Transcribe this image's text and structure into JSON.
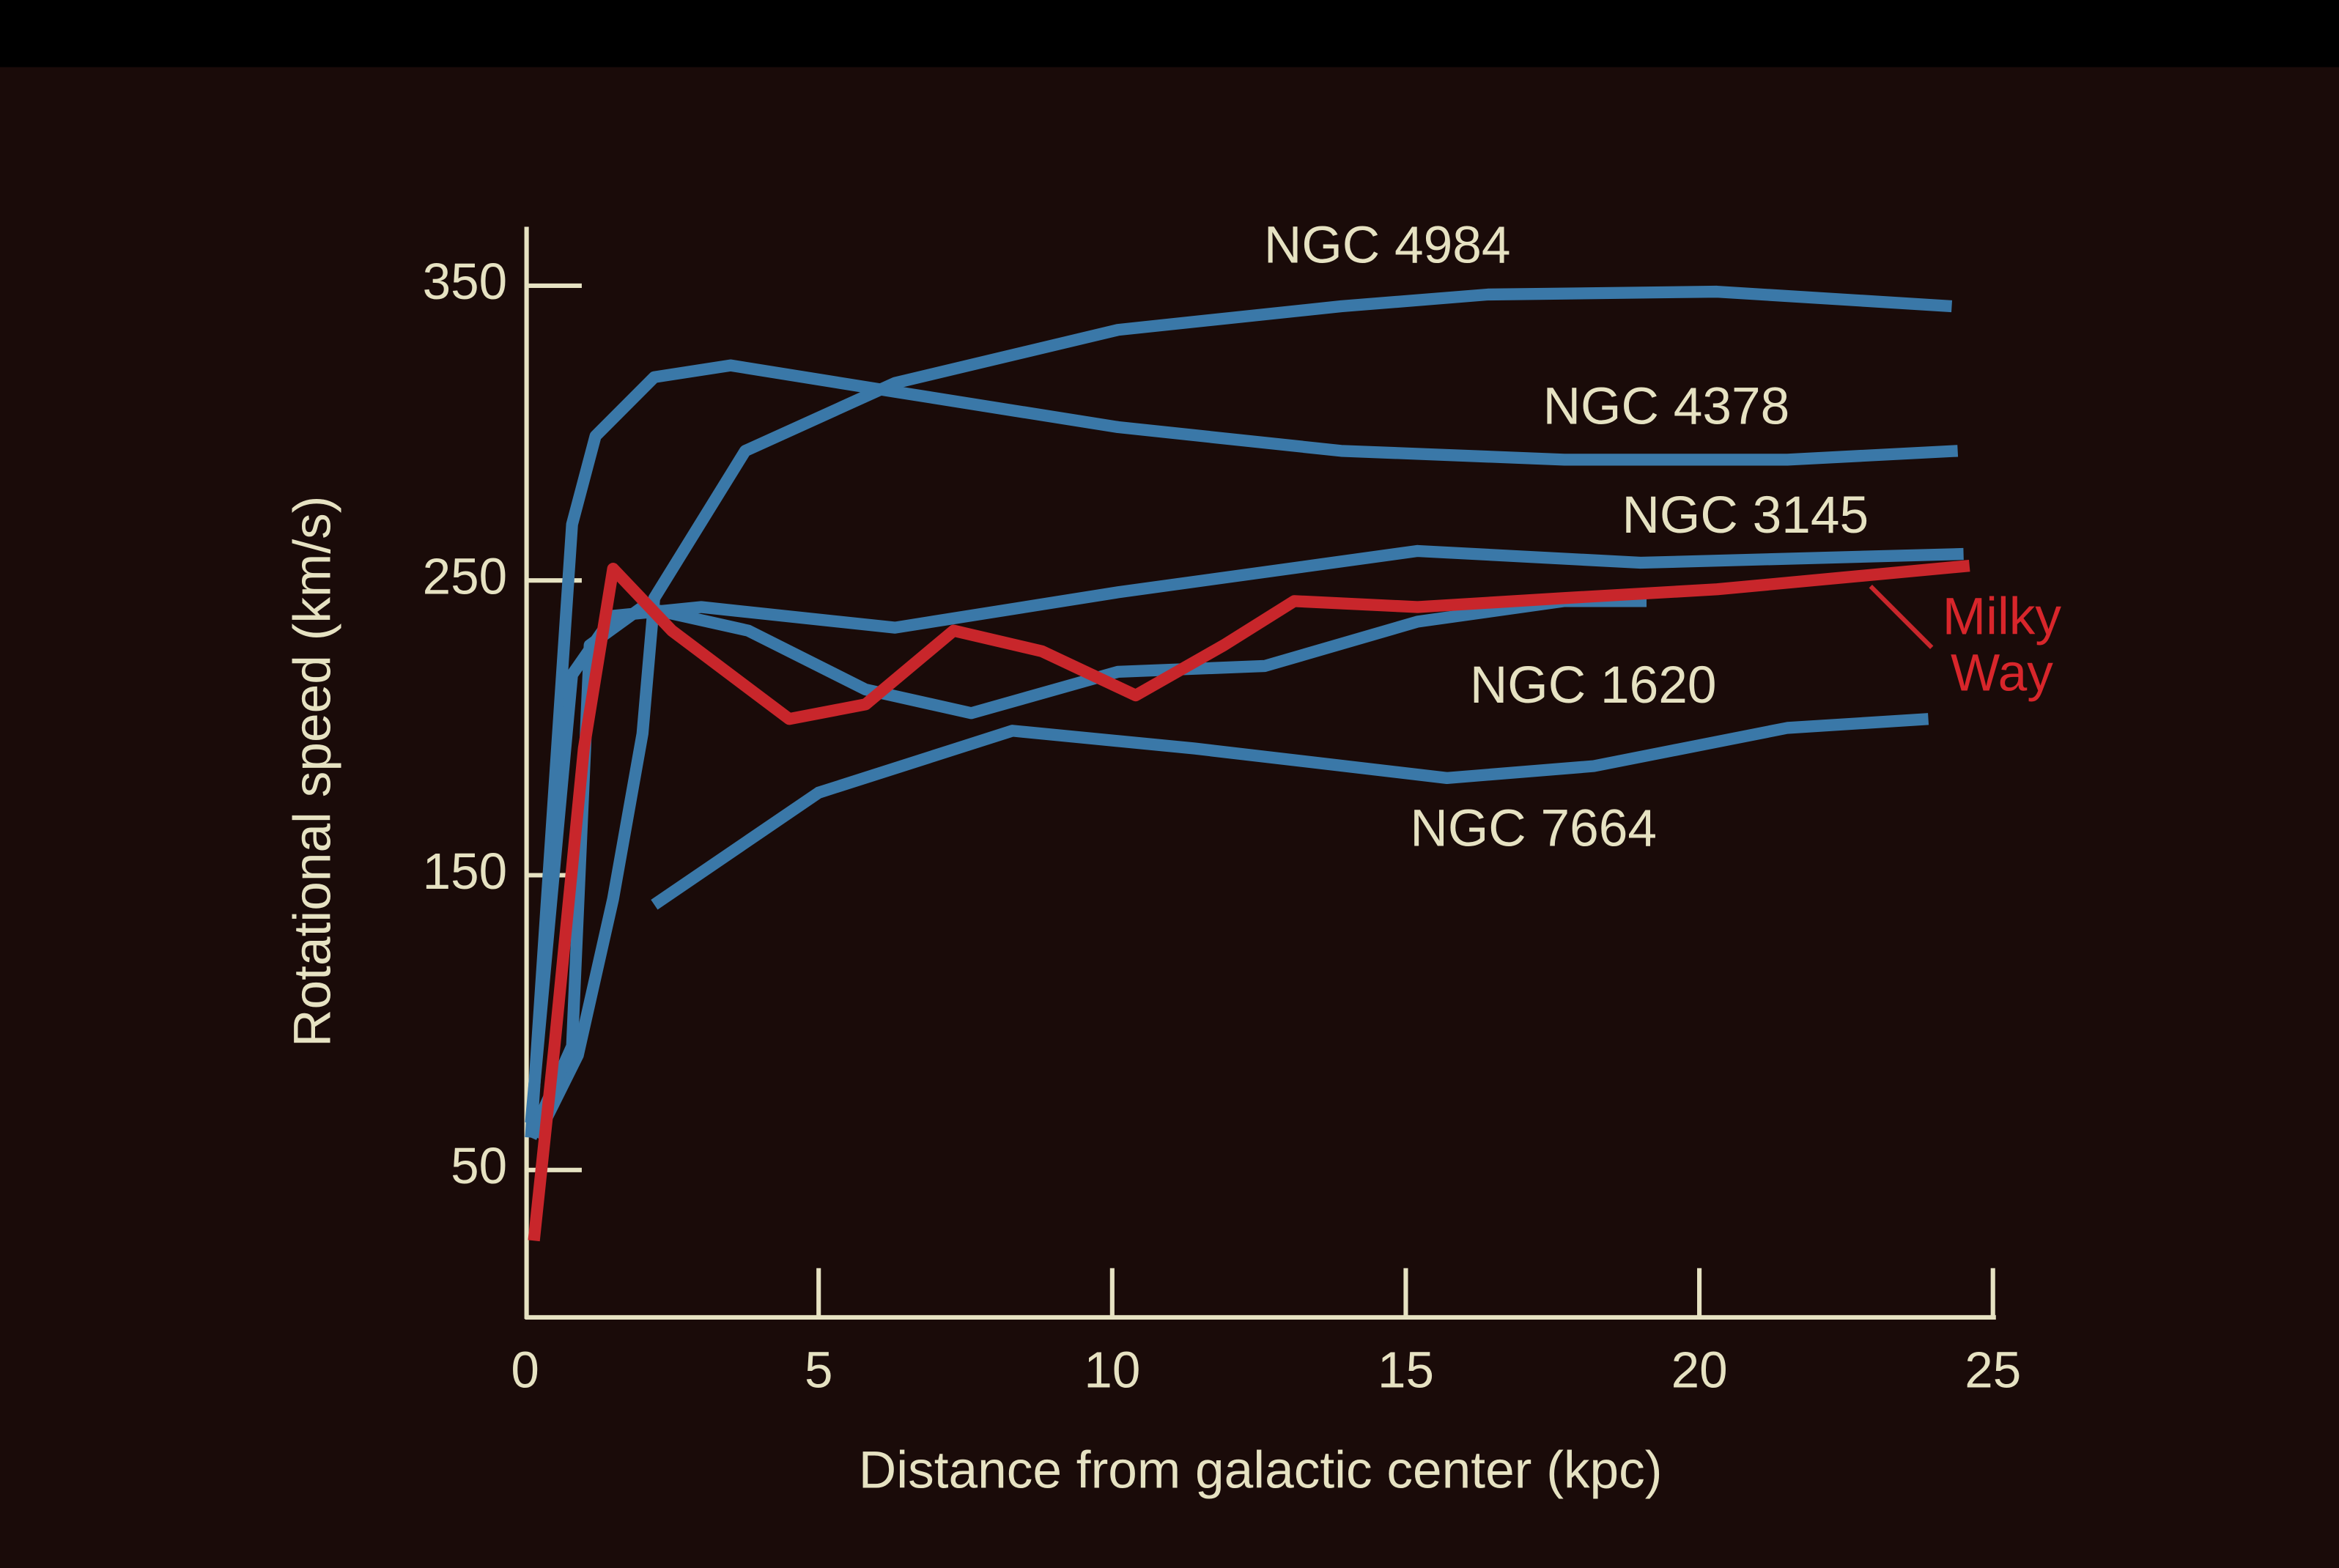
{
  "chart_data": {
    "type": "line",
    "xlabel": "Distance from galactic center (kpc)",
    "ylabel": "Rotational speed (km/s)",
    "xlim": [
      0,
      25
    ],
    "xticks": [
      0,
      5,
      10,
      15,
      20,
      25
    ],
    "ylim": [
      0,
      370
    ],
    "yticks": [
      50,
      150,
      250,
      350
    ],
    "series": [
      {
        "name": "NGC 4984",
        "color": "#3a78a8",
        "x": [
          0.2,
          0.9,
          1.5,
          2,
          2.2,
          3.75,
          6.3,
          10.1,
          13.9,
          16.4,
          20.3,
          24.3
        ],
        "values": [
          61,
          89,
          142,
          198,
          244,
          294,
          317,
          335,
          343,
          347,
          348,
          343
        ]
      },
      {
        "name": "NGC 4378",
        "color": "#3a78a8",
        "x": [
          0.1,
          0.8,
          1.2,
          2.2,
          3.5,
          6.3,
          10.1,
          13.9,
          17.7,
          21.5,
          24.4
        ],
        "values": [
          61,
          269,
          299,
          319,
          323,
          314,
          302,
          294,
          291,
          291,
          294
        ]
      },
      {
        "name": "NGC 3145",
        "color": "#3a78a8",
        "x": [
          0.1,
          0.8,
          1.5,
          3,
          6.3,
          10.1,
          15.2,
          19,
          24.5
        ],
        "values": [
          66,
          218,
          238,
          241,
          234,
          246,
          260,
          256,
          259
        ]
      },
      {
        "name": "NGC 1620",
        "color": "#3a78a8",
        "x": [
          0.1,
          0.8,
          1.1,
          2,
          3.8,
          5.8,
          7.6,
          10.1,
          12.6,
          15.2,
          17.7,
          19.1
        ],
        "values": [
          61,
          92,
          228,
          241,
          233,
          213,
          205,
          219,
          221,
          236,
          243,
          243
        ]
      },
      {
        "name": "NGC 7664",
        "color": "#3a78a8",
        "x": [
          2.2,
          5,
          8.3,
          11.4,
          15.7,
          18.2,
          21.5,
          23.9
        ],
        "values": [
          140,
          178,
          199,
          193,
          183,
          187,
          200,
          203
        ]
      },
      {
        "name": "Milky Way",
        "color": "#c8262b",
        "x": [
          0.15,
          0.5,
          1,
          1.5,
          2.5,
          4.5,
          5.8,
          7.3,
          8.8,
          10.4,
          11.9,
          13.1,
          15.2,
          17.7,
          20.3,
          24.6
        ],
        "values": [
          26,
          92,
          193,
          254,
          233,
          203,
          208,
          233,
          226,
          211,
          228,
          243,
          241,
          244,
          247,
          255
        ]
      }
    ]
  }
}
